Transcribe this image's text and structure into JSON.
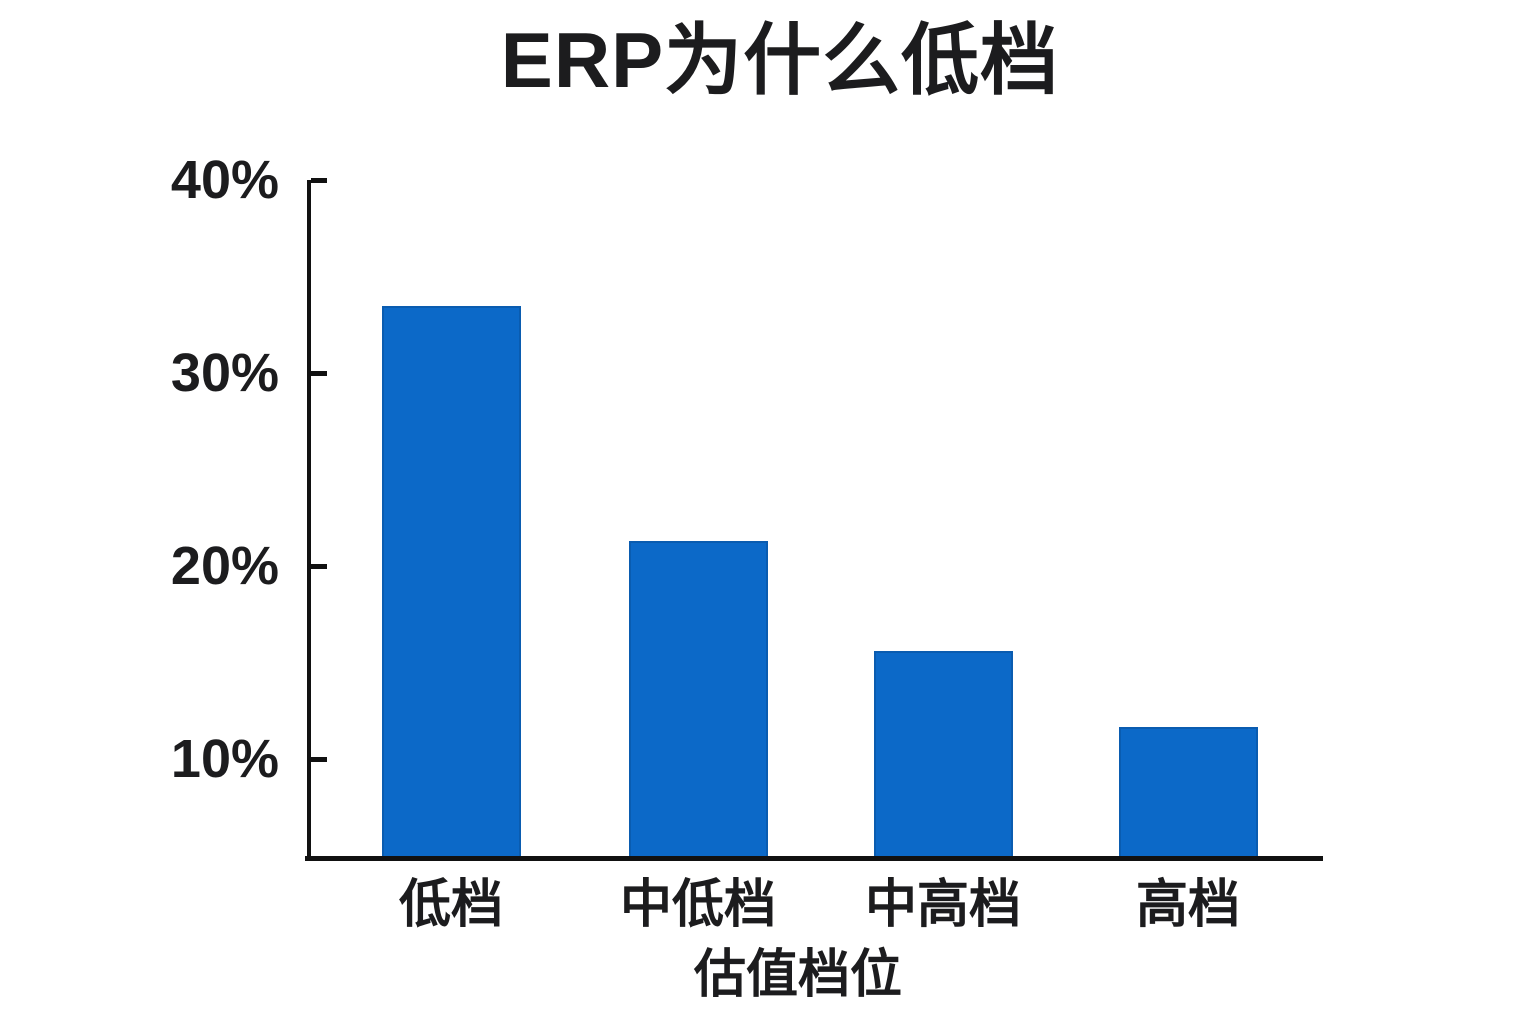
{
  "chart_data": {
    "type": "bar",
    "title": "ERP为什么低档",
    "xlabel": "估值档位",
    "ylabel": "",
    "categories": [
      "低档",
      "中低档",
      "中高档",
      "高档"
    ],
    "values": [
      33.5,
      21.3,
      15.6,
      11.7
    ],
    "unit": "%",
    "ylim": [
      5,
      40
    ],
    "yticks": [
      {
        "value": 40,
        "label": "40%"
      },
      {
        "value": 30,
        "label": "30%"
      },
      {
        "value": 20,
        "label": "20%"
      },
      {
        "value": 10,
        "label": "10%"
      }
    ],
    "grid": false,
    "legend": false,
    "bar_color": "#0c69c8",
    "axis_color": "#111111",
    "text_color": "#1c1c1e"
  }
}
